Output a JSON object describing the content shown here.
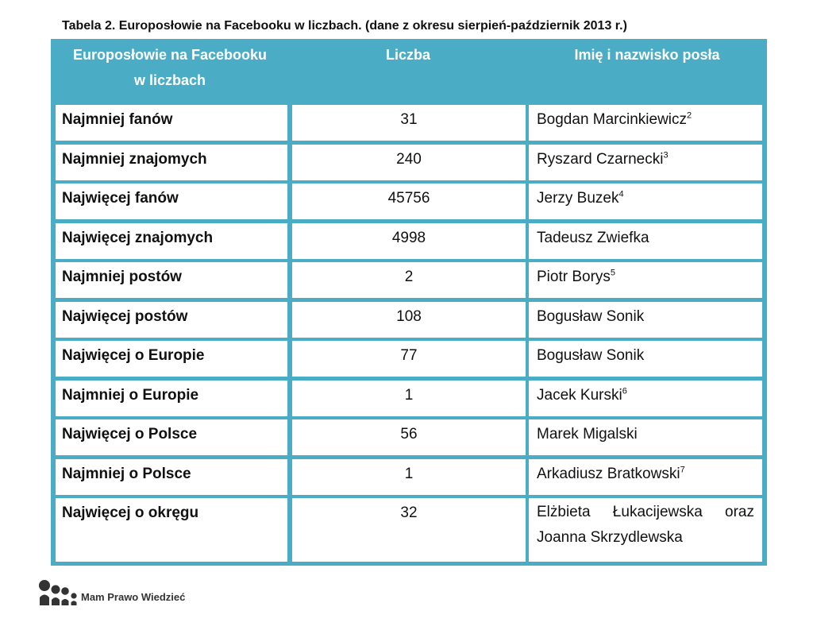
{
  "caption": "Tabela 2. Europosłowie na Facebooku w liczbach. (dane z okresu sierpień-październik 2013 r.)",
  "table": {
    "headers": {
      "col1_line1": "Europosłowie na Facebooku",
      "col1_line2": "w liczbach",
      "col2": "Liczba",
      "col3": "Imię i nazwisko posła"
    },
    "rows": [
      {
        "label": "Najmniej fanów",
        "value": "31",
        "name": "Bogdan Marcinkiewicz",
        "note": "2"
      },
      {
        "label": "Najmniej znajomych",
        "value": "240",
        "name": "Ryszard Czarnecki",
        "note": "3"
      },
      {
        "label": "Najwięcej fanów",
        "value": "45756",
        "name": "Jerzy Buzek",
        "note": "4"
      },
      {
        "label": "Najwięcej znajomych",
        "value": "4998",
        "name": "Tadeusz Zwiefka",
        "note": ""
      },
      {
        "label": "Najmniej postów",
        "value": "2",
        "name": "Piotr Borys",
        "note": "5"
      },
      {
        "label": "Najwięcej postów",
        "value": "108",
        "name": "Bogusław Sonik",
        "note": ""
      },
      {
        "label": "Najwięcej o Europie",
        "value": "77",
        "name": "Bogusław Sonik",
        "note": ""
      },
      {
        "label": "Najmniej o Europie",
        "value": "1",
        "name": "Jacek Kurski",
        "note": "6"
      },
      {
        "label": "Najwięcej o Polsce",
        "value": "56",
        "name": "Marek Migalski",
        "note": ""
      },
      {
        "label": "Najmniej o Polsce",
        "value": "1",
        "name": "Arkadiusz Bratkowski",
        "note": "7"
      },
      {
        "label": "Najwięcej o okręgu",
        "value": "32",
        "name": "Elżbieta Łukacijewska oraz",
        "name2": "Joanna Skrzydlewska",
        "note": ""
      }
    ]
  },
  "logo": {
    "text": "Mam Prawo Wiedzieć",
    "icon": "people-icon",
    "color": "#333333"
  },
  "colors": {
    "header_bg": "#4bacc6",
    "header_text": "#ffffff"
  }
}
